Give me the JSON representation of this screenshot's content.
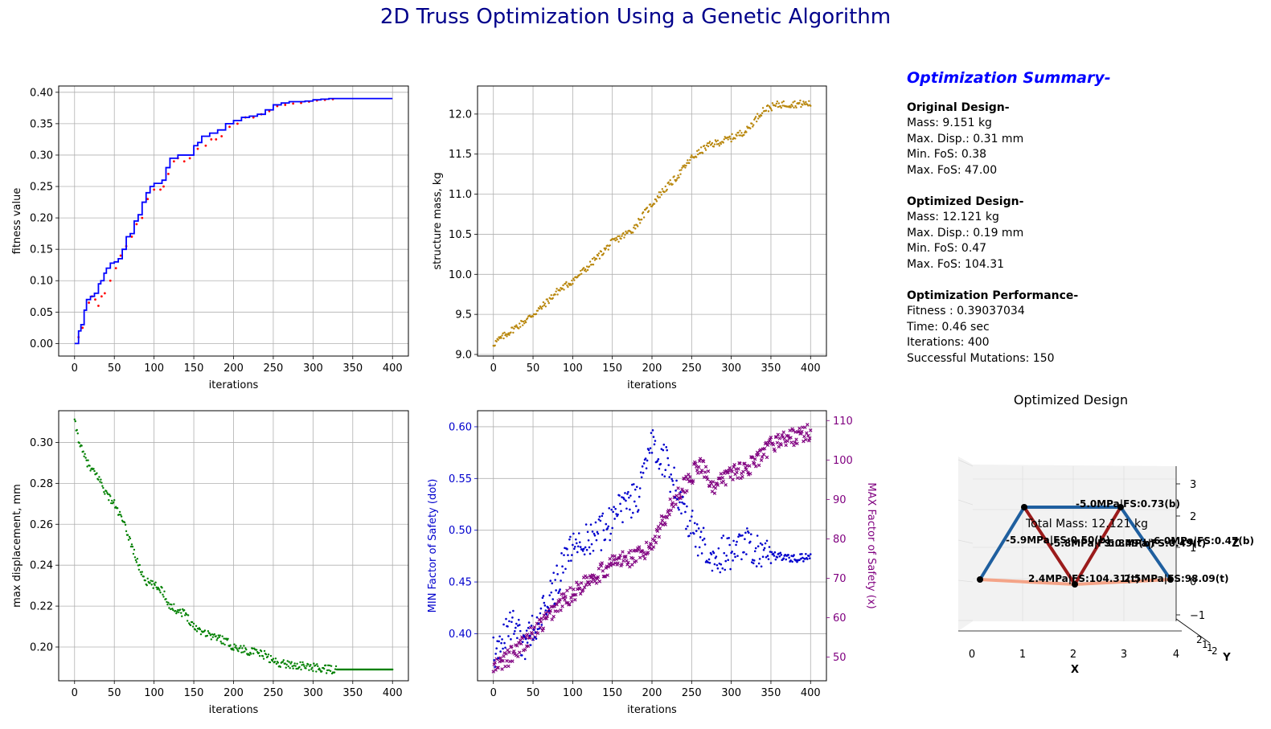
{
  "title": "2D Truss Optimization Using a Genetic Algorithm",
  "colors": {
    "title": "#00008b",
    "fitness_best": "#0000ff",
    "fitness_pop": "#ff0000",
    "mass": "#b8860b",
    "disp": "#008000",
    "fos_min": "#0000cd",
    "fos_max": "#800080",
    "summary_title": "#0000ff"
  },
  "chart_data": [
    {
      "type": "line",
      "name": "fitness",
      "xlabel": "iterations",
      "ylabel": "fitness value",
      "xlim": [
        -20,
        420
      ],
      "ylim": [
        -0.02,
        0.41
      ],
      "xticks": [
        0,
        50,
        100,
        150,
        200,
        250,
        300,
        350,
        400
      ],
      "yticks": [
        0.0,
        0.05,
        0.1,
        0.15,
        0.2,
        0.25,
        0.3,
        0.35,
        0.4
      ],
      "ytick_labels": [
        "0.00",
        "0.05",
        "0.10",
        "0.15",
        "0.20",
        "0.25",
        "0.30",
        "0.35",
        "0.40"
      ],
      "grid": true,
      "series": [
        {
          "style": "step-line",
          "x": [
            0,
            2,
            5,
            8,
            12,
            15,
            20,
            25,
            30,
            33,
            37,
            40,
            45,
            50,
            55,
            60,
            65,
            70,
            75,
            80,
            85,
            90,
            95,
            100,
            105,
            110,
            115,
            120,
            130,
            140,
            150,
            155,
            160,
            170,
            180,
            190,
            200,
            210,
            220,
            230,
            240,
            250,
            260,
            270,
            280,
            290,
            300,
            310,
            320,
            330,
            340,
            400
          ],
          "y": [
            0,
            0,
            0.02,
            0.03,
            0.053,
            0.07,
            0.075,
            0.08,
            0.095,
            0.1,
            0.112,
            0.12,
            0.128,
            0.13,
            0.135,
            0.15,
            0.17,
            0.175,
            0.195,
            0.205,
            0.225,
            0.24,
            0.25,
            0.255,
            0.255,
            0.26,
            0.28,
            0.295,
            0.3,
            0.3,
            0.315,
            0.32,
            0.33,
            0.335,
            0.34,
            0.35,
            0.355,
            0.36,
            0.362,
            0.365,
            0.372,
            0.38,
            0.383,
            0.385,
            0.385,
            0.386,
            0.388,
            0.389,
            0.39,
            0.39,
            0.39,
            0.39
          ]
        },
        {
          "style": "dots",
          "x": [
            5,
            10,
            18,
            22,
            26,
            30,
            34,
            38,
            45,
            52,
            58,
            65,
            72,
            78,
            85,
            92,
            100,
            108,
            112,
            118,
            125,
            130,
            138,
            145,
            155,
            165,
            172,
            178,
            185,
            195,
            205,
            215,
            225,
            235,
            245,
            255,
            265,
            275,
            285,
            295,
            305,
            315,
            325
          ],
          "y": [
            0.01,
            0.025,
            0.065,
            0.075,
            0.07,
            0.06,
            0.075,
            0.08,
            0.1,
            0.12,
            0.14,
            0.155,
            0.17,
            0.19,
            0.2,
            0.23,
            0.245,
            0.245,
            0.25,
            0.27,
            0.29,
            0.295,
            0.29,
            0.295,
            0.31,
            0.315,
            0.325,
            0.325,
            0.33,
            0.345,
            0.35,
            0.36,
            0.36,
            0.365,
            0.37,
            0.378,
            0.38,
            0.382,
            0.383,
            0.385,
            0.387,
            0.388,
            0.389
          ]
        }
      ]
    },
    {
      "type": "scatter",
      "name": "mass",
      "xlabel": "iterations",
      "ylabel": "structure mass, kg",
      "xlim": [
        -20,
        420
      ],
      "ylim": [
        8.98,
        12.35
      ],
      "xticks": [
        0,
        50,
        100,
        150,
        200,
        250,
        300,
        350,
        400
      ],
      "yticks": [
        9.0,
        9.5,
        10.0,
        10.5,
        11.0,
        11.5,
        12.0
      ],
      "ytick_labels": [
        "9.0",
        "9.5",
        "10.0",
        "10.5",
        "11.0",
        "11.5",
        "12.0"
      ],
      "grid": true,
      "trend": {
        "x": [
          0,
          20,
          40,
          60,
          80,
          100,
          120,
          135,
          150,
          175,
          190,
          210,
          230,
          250,
          270,
          300,
          320,
          340,
          360,
          400
        ],
        "y": [
          9.13,
          9.28,
          9.42,
          9.58,
          9.78,
          9.92,
          10.1,
          10.25,
          10.4,
          10.55,
          10.75,
          11.0,
          11.2,
          11.45,
          11.6,
          11.7,
          11.8,
          12.05,
          12.12,
          12.13
        ]
      }
    },
    {
      "type": "scatter",
      "name": "displacement",
      "xlabel": "iterations",
      "ylabel": "max displacement, mm",
      "xlim": [
        -20,
        420
      ],
      "ylim": [
        0.1835,
        0.3155
      ],
      "xticks": [
        0,
        50,
        100,
        150,
        200,
        250,
        300,
        350,
        400
      ],
      "yticks": [
        0.2,
        0.22,
        0.24,
        0.26,
        0.28,
        0.3
      ],
      "ytick_labels": [
        "0.20",
        "0.22",
        "0.24",
        "0.26",
        "0.28",
        "0.30"
      ],
      "grid": true,
      "trend": {
        "x": [
          0,
          5,
          10,
          20,
          30,
          40,
          50,
          60,
          70,
          80,
          90,
          100,
          110,
          120,
          140,
          150,
          170,
          190,
          200,
          220,
          240,
          250,
          260,
          280,
          300,
          320,
          340,
          400
        ],
        "y": [
          0.31,
          0.302,
          0.295,
          0.287,
          0.283,
          0.275,
          0.27,
          0.262,
          0.252,
          0.24,
          0.232,
          0.23,
          0.228,
          0.22,
          0.216,
          0.21,
          0.206,
          0.203,
          0.2,
          0.198,
          0.196,
          0.193,
          0.192,
          0.191,
          0.19,
          0.189,
          0.189,
          0.189
        ]
      }
    },
    {
      "type": "scatter",
      "name": "factor-of-safety",
      "xlabel": "iterations",
      "ylabel": "MIN Factor of Safety (dot)",
      "y2label": "MAX Factor of Safety (x)",
      "xlim": [
        -20,
        420
      ],
      "ylim": [
        0.3545,
        0.6155
      ],
      "y2lim": [
        44.0,
        112.5
      ],
      "xticks": [
        0,
        50,
        100,
        150,
        200,
        250,
        300,
        350,
        400
      ],
      "yticks": [
        0.4,
        0.45,
        0.5,
        0.55,
        0.6
      ],
      "ytick_labels": [
        "0.40",
        "0.45",
        "0.50",
        "0.55",
        "0.60"
      ],
      "y2ticks": [
        50,
        60,
        70,
        80,
        90,
        100,
        110
      ],
      "grid": true,
      "series": [
        {
          "name_hidden": "min_fos",
          "marker": "dot",
          "trend_x": [
            0,
            20,
            40,
            60,
            80,
            100,
            120,
            140,
            160,
            180,
            190,
            200,
            210,
            220,
            240,
            260,
            280,
            300,
            320,
            340,
            360,
            380,
            400
          ],
          "trend_y": [
            0.38,
            0.41,
            0.39,
            0.42,
            0.45,
            0.49,
            0.49,
            0.5,
            0.52,
            0.53,
            0.55,
            0.58,
            0.575,
            0.56,
            0.52,
            0.49,
            0.475,
            0.48,
            0.485,
            0.475,
            0.475,
            0.473,
            0.474
          ]
        },
        {
          "name_hidden": "max_fos",
          "marker": "x",
          "trend_x": [
            0,
            20,
            40,
            60,
            80,
            100,
            120,
            140,
            150,
            170,
            190,
            200,
            210,
            220,
            235,
            250,
            260,
            280,
            300,
            320,
            340,
            350,
            360,
            380,
            400
          ],
          "trend_y": [
            47,
            50,
            54,
            58,
            63,
            66,
            70,
            72,
            74,
            75,
            76,
            79,
            83,
            87,
            92,
            96,
            99,
            93,
            97,
            98,
            101,
            104,
            105,
            106,
            107
          ]
        }
      ]
    }
  ],
  "summary": {
    "title": "Optimization Summary-",
    "original": {
      "heading": "Original Design-",
      "lines": [
        "Mass: 9.151 kg",
        "Max. Disp.: 0.31 mm",
        "Min. FoS: 0.38",
        "Max. FoS: 47.00"
      ]
    },
    "optimized": {
      "heading": "Optimized Design-",
      "lines": [
        "Mass: 12.121 kg",
        "Max. Disp.: 0.19 mm",
        "Min. FoS: 0.47",
        "Max. FoS: 104.31"
      ]
    },
    "performance": {
      "heading": "Optimization Performance-",
      "lines": [
        "Fitness :  0.39037034",
        "Time:  0.46 sec",
        "Iterations: 400",
        "Successful Mutations: 150"
      ]
    }
  },
  "design": {
    "title": "Optimized Design",
    "total_mass": "Total Mass: 12.121 kg",
    "xlabel": "X",
    "ylabel": "Y",
    "zlabel": "Z",
    "xticks": [
      "0",
      "1",
      "2",
      "3",
      "4"
    ],
    "zticks": [
      "3",
      "2",
      "1",
      "0",
      "−1"
    ],
    "yticks": [
      "2",
      "1",
      "0",
      "1",
      "2"
    ],
    "member_labels": [
      "-5.0MPa|FS:0.73(b)",
      "-5.9MPa|FS:0.50(b)",
      "-5.8MPa|FS:0.49(b)",
      "5.8MPa|FS:0.49(t)",
      "-6.0MPa|FS:0.47(b)",
      "2.4MPa|FS:104.31(t)",
      "2.5MPa|FS:98.09(t)"
    ],
    "member_colors": [
      "#1f5f9f",
      "#1f5f9f",
      "#9b1b1b",
      "#9b1b1b",
      "#1f5f9f",
      "#f4a488",
      "#f4a488"
    ]
  }
}
